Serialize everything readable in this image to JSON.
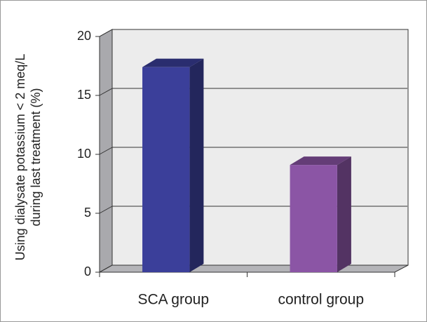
{
  "chart_data": {
    "type": "bar3d",
    "ylabel": [
      "Using dialysate potassium < 2 meq/L",
      "during last treatment (%)"
    ],
    "categories": [
      "SCA group",
      "control group"
    ],
    "values": [
      17.4,
      9.1
    ],
    "colors": [
      "#3b3f9a",
      "#8b55a5"
    ],
    "ylim": [
      0,
      20
    ],
    "yticks": [
      0,
      5,
      10,
      15,
      20
    ],
    "grid": true
  }
}
